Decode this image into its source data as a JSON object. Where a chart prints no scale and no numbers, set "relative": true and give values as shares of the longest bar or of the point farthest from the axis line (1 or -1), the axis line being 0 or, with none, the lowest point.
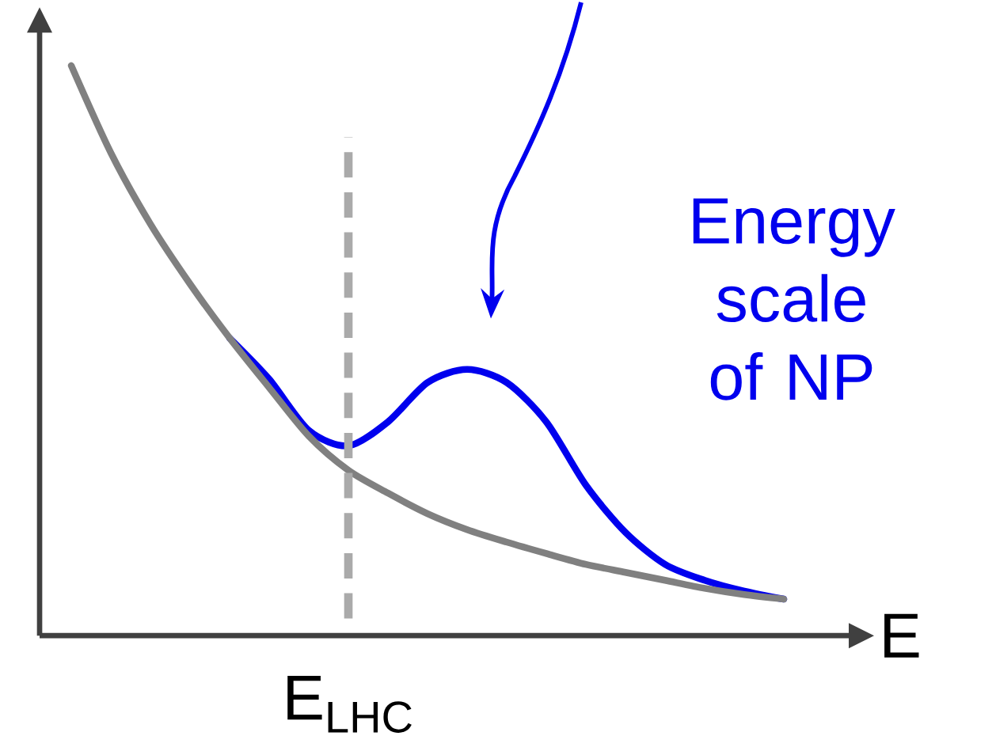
{
  "chart_data": {
    "type": "line",
    "relative": true,
    "xlabel": "E",
    "categories": [
      null,
      null,
      null,
      null,
      null,
      null,
      null,
      null,
      null,
      null,
      null,
      null,
      null,
      null,
      null,
      null,
      null,
      null,
      null
    ],
    "series": [
      {
        "color": "#0000ee",
        "values": [
          null,
          null,
          null,
          null,
          0.522,
          0.45,
          0.36,
          0.333,
          0.375,
          0.444,
          0.467,
          0.444,
          0.375,
          0.264,
          0.181,
          0.125,
          0.097,
          0.078,
          0.064
        ]
      },
      {
        "color": "#808080",
        "values": [
          1,
          0.847,
          0.722,
          0.617,
          0.522,
          0.435,
          0.35,
          0.29,
          0.25,
          0.214,
          0.186,
          0.164,
          0.144,
          0.125,
          0.111,
          0.097,
          0.083,
          0.072,
          0.064
        ]
      }
    ],
    "annotations": [
      "E$_{LHC}$",
      "Energy scale of NP"
    ],
    "marker": "none",
    "line_style": "solid"
  }
}
